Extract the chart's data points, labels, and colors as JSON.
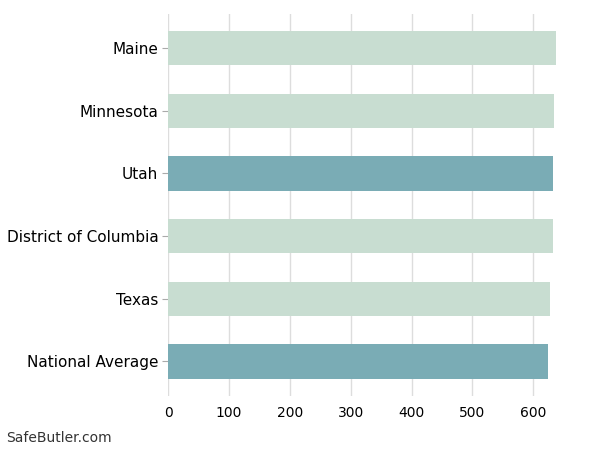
{
  "categories": [
    "Maine",
    "Minnesota",
    "Utah",
    "District of Columbia",
    "Texas",
    "National Average"
  ],
  "values": [
    638,
    634,
    633,
    632,
    628,
    624
  ],
  "bar_colors": [
    "#c8ddd1",
    "#c8ddd1",
    "#7aacb5",
    "#c8ddd1",
    "#c8ddd1",
    "#7aacb5"
  ],
  "xlim": [
    0,
    680
  ],
  "xticks": [
    0,
    100,
    200,
    300,
    400,
    500,
    600
  ],
  "background_color": "#ffffff",
  "grid_color": "#dddddd",
  "bar_height": 0.55,
  "footer_text": "SafeButler.com",
  "footer_fontsize": 10,
  "tick_label_fontsize": 10,
  "ylabel_fontsize": 11
}
